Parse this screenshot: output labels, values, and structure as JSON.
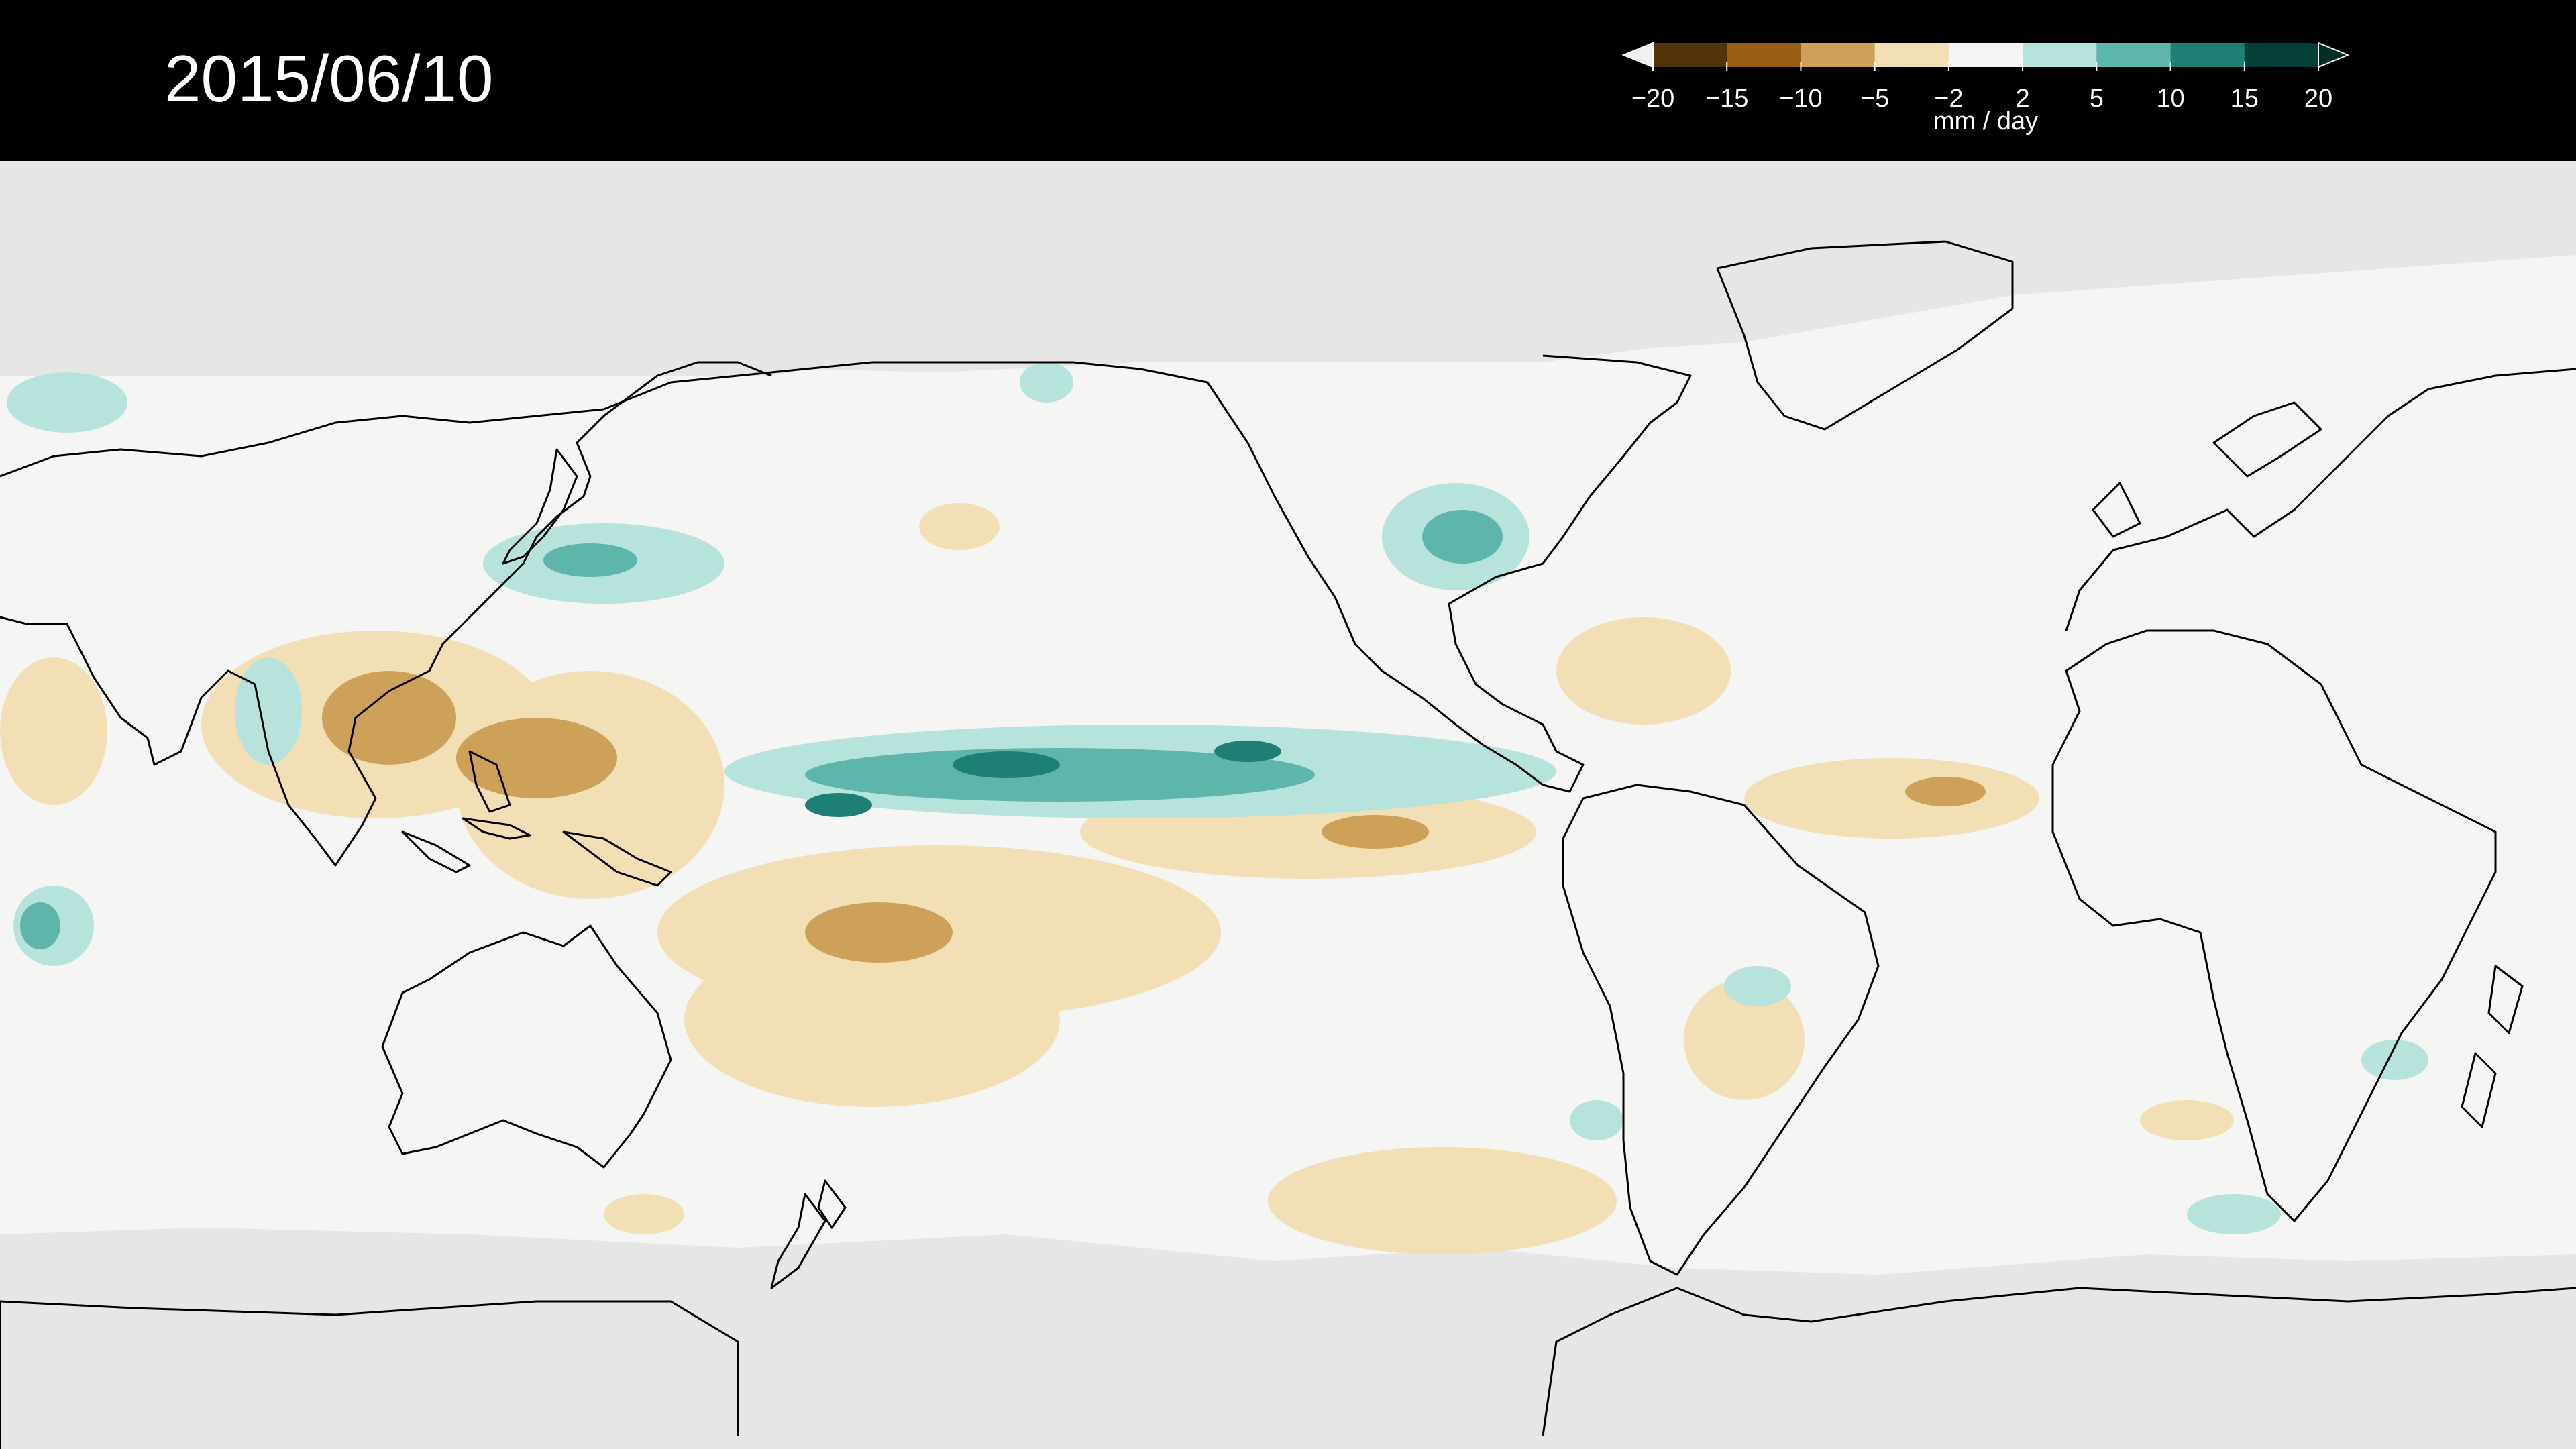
{
  "date": "2015/06/10",
  "colorbar": {
    "ticks": [
      "−20",
      "−15",
      "−10",
      "−5",
      "−2",
      "2",
      "5",
      "10",
      "15",
      "20"
    ],
    "unit": "mm / day",
    "colors": [
      "#533308",
      "#9a5d14",
      "#cda15a",
      "#f3dfb6",
      "#f5f5f5",
      "#b6e3dc",
      "#5eb5a9",
      "#1e7f75",
      "#033f37"
    ],
    "extend": "both"
  },
  "map": {
    "projection": "equirectangular",
    "central_longitude": "180",
    "ocean_land_fill": "#f5f5f4",
    "no_data_fill": "#e6e6e6",
    "coastline_color": "#000000"
  }
}
